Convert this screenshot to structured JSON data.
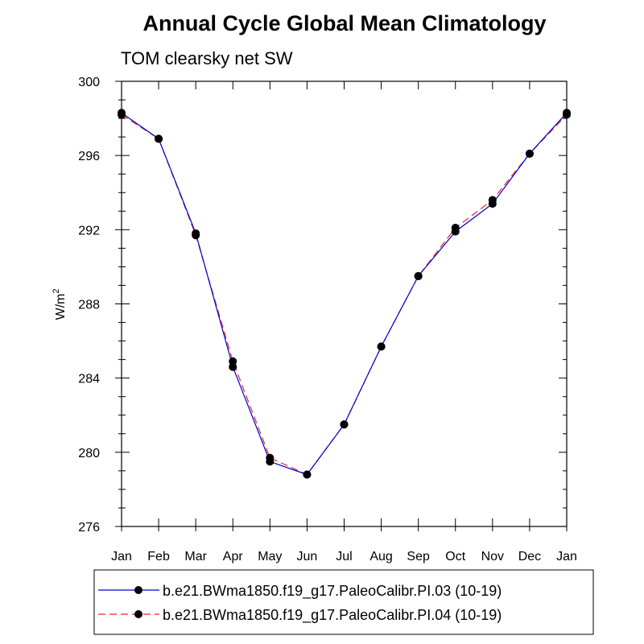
{
  "chart_data": {
    "type": "line",
    "title": "Annual Cycle Global Mean Climatology",
    "subtitle": "TOM clearsky net SW",
    "ylabel_base": "W/m",
    "ylabel_exp": "2",
    "categories": [
      "Jan",
      "Feb",
      "Mar",
      "Apr",
      "May",
      "Jun",
      "Jul",
      "Aug",
      "Sep",
      "Oct",
      "Nov",
      "Dec",
      "Jan"
    ],
    "ylim": [
      276,
      300
    ],
    "yticks": [
      276,
      280,
      284,
      288,
      292,
      296,
      300
    ],
    "yticks_labels": [
      "276",
      "280",
      "284",
      "288",
      "292",
      "296",
      "300"
    ],
    "grid": false,
    "legend_position": "bottom",
    "series": [
      {
        "name": "b.e21.BWma1850.f19_g17.PaleoCalibr.PI.03 (10-19)",
        "color": "#0000cc",
        "dash": "solid",
        "values": [
          298.3,
          296.9,
          291.8,
          284.6,
          279.5,
          278.8,
          281.5,
          285.7,
          289.5,
          291.9,
          293.4,
          296.1,
          298.3
        ]
      },
      {
        "name": "b.e21.BWma1850.f19_g17.PaleoCalibr.PI.04 (10-19)",
        "color": "#e8242c",
        "dash": "dashed",
        "values": [
          298.2,
          296.9,
          291.7,
          284.9,
          279.7,
          278.8,
          281.5,
          285.7,
          289.5,
          292.1,
          293.6,
          296.1,
          298.2
        ]
      }
    ]
  }
}
